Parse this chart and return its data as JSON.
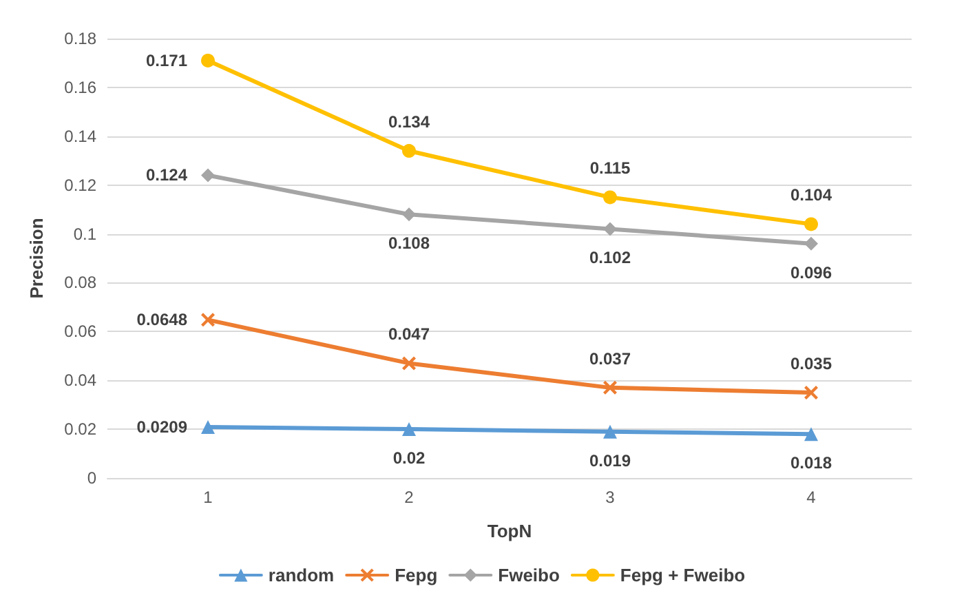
{
  "chart_data": {
    "type": "line",
    "xlabel": "TopN",
    "ylabel": "Precision",
    "categories": [
      "1",
      "2",
      "3",
      "4"
    ],
    "series": [
      {
        "name": "random",
        "color": "#5b9bd5",
        "marker": "triangle",
        "values": [
          0.0209,
          0.02,
          0.019,
          0.018
        ]
      },
      {
        "name": "Fepg",
        "color": "#ed7d31",
        "marker": "cross",
        "values": [
          0.0648,
          0.047,
          0.037,
          0.035
        ]
      },
      {
        "name": "Fweibo",
        "color": "#a5a5a5",
        "marker": "diamond",
        "values": [
          0.124,
          0.108,
          0.102,
          0.096
        ]
      },
      {
        "name": "Fepg + Fweibo",
        "color": "#ffc000",
        "marker": "circle",
        "values": [
          0.171,
          0.134,
          0.115,
          0.104
        ]
      }
    ],
    "ylim": [
      0,
      0.18
    ],
    "yticks": [
      0,
      0.02,
      0.04,
      0.06,
      0.08,
      0.1,
      0.12,
      0.14,
      0.16,
      0.18
    ],
    "grid": "y",
    "legend": "bottom",
    "data_labels": true
  }
}
